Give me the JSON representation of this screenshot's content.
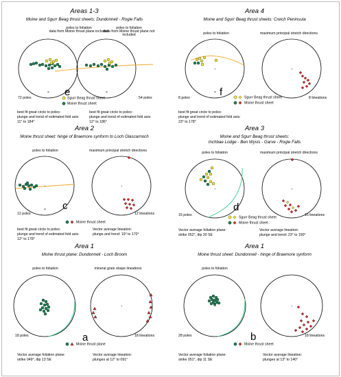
{
  "colors": {
    "moine": "#1f7f55",
    "sgurr": "#e9e23a",
    "lineation": "#d22b2b",
    "great_circle": "#f5a623",
    "foliation_plane": "#3cc98a"
  },
  "panels": [
    {
      "title": "Areas 1-3",
      "subtitle": "Moine and Sgurr Beag thrust sheets: Dundonnell - Rogie Falls",
      "left_caption": "poles to foliation\ndata from Moine thrust plane included",
      "right_caption": "poles to foliation\ndata from Moine thrust plane not included",
      "left_count": "72 poles",
      "right_count": "54 poles",
      "letter": "e",
      "legend": [
        "Sgurr Beag thrust sheet",
        "Moine thrust sheet"
      ],
      "notes": [
        "best fit great circle to poles:",
        "plunge and trend of estimated fold axis:",
        "11° to 184°"
      ],
      "notes_right": [
        "best fit great circle to poles:",
        "plunge and trend of estimated fold axis:",
        "12° to 186°"
      ]
    },
    {
      "title": "Area 4",
      "subtitle": "Moine and Sgurr Beag thrust sheets: Creich Peninsula",
      "left_caption": "poles to foliation",
      "right_caption": "maximum principal stretch directions",
      "left_count": "8 poles",
      "right_count": "8 lineations",
      "letter": "f",
      "legend": [
        "Sgurr Beag thrust sheet",
        "Moine thrust sheet"
      ],
      "notes": [
        "best fit great circle to poles:",
        "plunge and trend of estimated fold axis:",
        "23° to 178°"
      ]
    },
    {
      "title": "Area 2",
      "subtitle": "Moine thrust sheet: hinge of Braemore synform to Loch Glascarnoch",
      "left_caption": "poles to foliation",
      "right_caption": "maximum principal stretch directions",
      "left_count": "12 poles",
      "right_count": "12 lineations",
      "letter": "c",
      "legend": [
        "Moine thrust sheet"
      ],
      "notes": [
        "best fit great circle to poles:",
        "plunge and trend of estimated fold axis:",
        "12° to 178°"
      ],
      "notes_right": [
        "Vector average lineation:",
        "plunge and trend: 19° to 170°"
      ]
    },
    {
      "title": "Area 3",
      "subtitle": "Moine and Sgurr Beag thrust sheets:\nInchbae Lodge - Ben Wyvis - Garve - Rogie Falls",
      "left_caption": "poles to foliation",
      "right_caption": "maximum principal stretch directions",
      "left_count": "15 poles",
      "right_count": "15 lineations",
      "letter": "d",
      "legend": [
        "Sgurr Beag thrust sheet",
        "Moine thrust sheet"
      ],
      "notes": [
        "Vector average foliation plane:",
        "strike 052°, dip 30 SE"
      ],
      "notes_right": [
        "Vector average lineation:",
        "plunge and trend: 23° to 190°"
      ]
    },
    {
      "title": "Area 1",
      "subtitle": "Moine thrust plane: Dundonnell - Loch Broom",
      "left_caption": "poles to foliation",
      "right_caption": "mineral grain shape lineations",
      "left_count": "18 poles",
      "right_count": "18 lineations",
      "letter": "a",
      "legend": [
        "Moine thrust plane"
      ],
      "notes": [
        "Vector average foliation plane:",
        "strike 049°, dip 13 SE"
      ],
      "notes_right": [
        "Vector average lineation:",
        "plunges at 12° to 091°"
      ]
    },
    {
      "title": "Area 1",
      "subtitle": "Moine thrust sheet: Dundonnell - hinge of Braemore synform",
      "left_caption": "poles to foliation",
      "right_caption": "",
      "left_count": "28 poles",
      "right_count": "18 lineations",
      "letter": "b",
      "legend": [
        "Moine thrust sheet"
      ],
      "notes": [
        "Vector average foliation plane:",
        "strike 051°, dip 11 SE"
      ],
      "notes_right": [
        "Vector average lineation:",
        "plunges at 13° to 140°"
      ]
    }
  ]
}
